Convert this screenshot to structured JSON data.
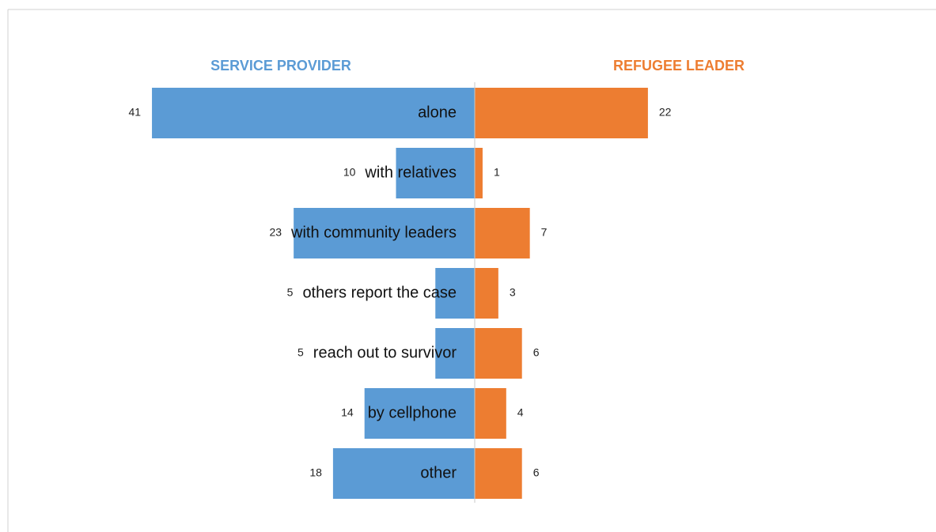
{
  "chart_data": {
    "type": "butterfly",
    "categories": [
      "alone",
      "with relatives",
      "with community leaders",
      "others report the case",
      "reach out to survivor",
      "by cellphone",
      "other"
    ],
    "series": [
      {
        "name": "SERVICE PROVIDER",
        "color": "#5b9bd5",
        "values": [
          41,
          10,
          23,
          5,
          5,
          14,
          18
        ]
      },
      {
        "name": "REFUGEE LEADER",
        "color": "#ed7d31",
        "values": [
          22,
          1,
          7,
          3,
          6,
          4,
          6
        ]
      }
    ]
  }
}
